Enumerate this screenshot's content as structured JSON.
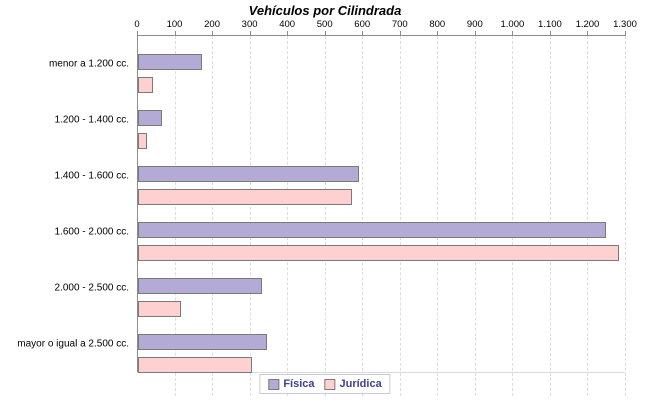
{
  "chart_data": {
    "type": "bar",
    "orientation": "horizontal",
    "title": "Vehículos por Cilindrada",
    "categories": [
      "menor a 1.200 cc.",
      "1.200 - 1.400 cc.",
      "1.400 - 1.600 cc.",
      "1.600 - 2.000 cc.",
      "2.000 - 2.500 cc.",
      "mayor o igual a 2.500 cc."
    ],
    "series": [
      {
        "name": "Física",
        "color": "#b4aad6",
        "values": [
          170,
          65,
          590,
          1250,
          330,
          345
        ]
      },
      {
        "name": "Jurídica",
        "color": "#ffd0d0",
        "values": [
          40,
          25,
          570,
          1285,
          115,
          305
        ]
      }
    ],
    "xlim": [
      0,
      1300
    ],
    "x_tick_values": [
      0,
      100,
      200,
      300,
      400,
      500,
      600,
      700,
      800,
      900,
      1000,
      1100,
      1200,
      1300
    ],
    "x_tick_labels": [
      "0",
      "100",
      "200",
      "300",
      "400",
      "500",
      "600",
      "700",
      "800",
      "900",
      "1.000",
      "1.100",
      "1.200",
      "1.300"
    ],
    "xlabel": "",
    "ylabel": "",
    "grid": "vertical-dashed",
    "legend_position": "bottom-center",
    "colors": {
      "axis": "#8c8c8c",
      "gridline": "#dcdcdc",
      "bar_border": "#7a7a7a",
      "legend_text": "#41418f",
      "title_text": "#000000"
    }
  }
}
